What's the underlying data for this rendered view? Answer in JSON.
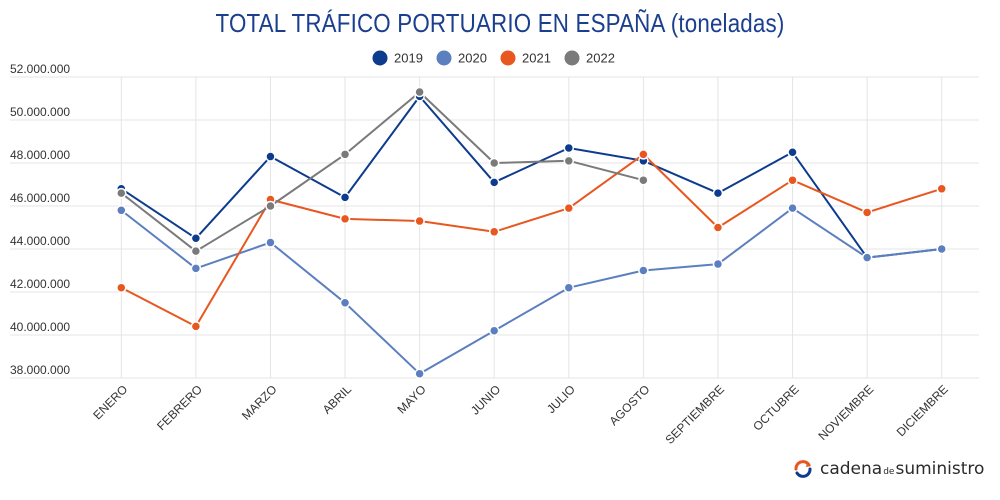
{
  "chart_data": {
    "type": "line",
    "title": "TOTAL TRÁFICO PORTUARIO EN ESPAÑA (toneladas)",
    "xlabel": "",
    "ylabel": "",
    "categories": [
      "ENERO",
      "FEBRERO",
      "MARZO",
      "ABRIL",
      "MAYO",
      "JUNIO",
      "JULIO",
      "AGOSTO",
      "SEPTIEMBRE",
      "OCTUBRE",
      "NOVIEMBRE",
      "DICIEMBRE"
    ],
    "ylim": [
      38000000,
      52000000
    ],
    "yticks": [
      38000000,
      40000000,
      42000000,
      44000000,
      46000000,
      48000000,
      50000000,
      52000000
    ],
    "ytick_labels": [
      "38.000.000",
      "40.000.000",
      "42.000.000",
      "44.000.000",
      "46.000.000",
      "48.000.000",
      "50.000.000",
      "52.000.000"
    ],
    "grid": true,
    "legend_position": "top-center",
    "series": [
      {
        "name": "2019",
        "color": "#0d3b8e",
        "values": [
          46800000,
          44500000,
          48300000,
          46400000,
          51100000,
          47100000,
          48700000,
          48100000,
          46600000,
          48500000,
          43600000,
          44000000
        ]
      },
      {
        "name": "2020",
        "color": "#5c7fbf",
        "values": [
          45800000,
          43100000,
          44300000,
          41500000,
          38200000,
          40200000,
          42200000,
          43000000,
          43300000,
          45900000,
          43600000,
          44000000
        ]
      },
      {
        "name": "2021",
        "color": "#e8571f",
        "values": [
          42200000,
          40400000,
          46300000,
          45400000,
          45300000,
          44800000,
          45900000,
          48400000,
          45000000,
          47200000,
          45700000,
          46800000
        ]
      },
      {
        "name": "2022",
        "color": "#7a7a7a",
        "values": [
          46600000,
          43900000,
          46000000,
          48400000,
          51300000,
          48000000,
          48100000,
          47200000,
          null,
          null,
          null,
          null
        ]
      }
    ]
  },
  "branding": {
    "logo_word1": "cadena",
    "logo_word2": "de",
    "logo_word3": "suministro",
    "logo_color": "#e8571f",
    "logo_color2": "#0d3b8e"
  }
}
